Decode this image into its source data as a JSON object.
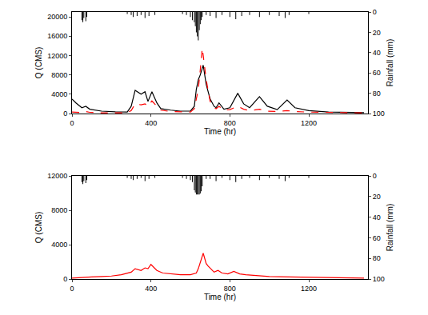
{
  "chart_data": [
    {
      "type": "line",
      "x_label": "Time (hr)",
      "y_label": "Q (CMS)",
      "y2_label": "Rainfall (mm)",
      "xlim": [
        0,
        1500
      ],
      "xticks": [
        0,
        400,
        800,
        1200
      ],
      "ylim": [
        0,
        21000
      ],
      "yticks": [
        0,
        4000,
        8000,
        12000,
        16000,
        20000
      ],
      "y2lim": [
        100,
        0
      ],
      "y2ticks": [
        0,
        20,
        40,
        60,
        80,
        100
      ],
      "grid": false,
      "x": [
        0,
        20,
        50,
        70,
        90,
        150,
        220,
        280,
        300,
        320,
        350,
        370,
        385,
        405,
        430,
        450,
        500,
        550,
        600,
        620,
        630,
        640,
        650,
        660,
        665,
        680,
        700,
        720,
        730,
        745,
        770,
        800,
        840,
        870,
        900,
        950,
        990,
        1040,
        1090,
        1130,
        1200,
        1300,
        1400,
        1480
      ],
      "series": [
        {
          "type": "line",
          "color": "#000000",
          "line_style": "solid",
          "values": [
            3000,
            2200,
            1200,
            1500,
            900,
            500,
            350,
            300,
            1500,
            4800,
            4000,
            4500,
            2500,
            4500,
            2200,
            1000,
            700,
            500,
            500,
            1500,
            5000,
            7000,
            8000,
            9500,
            10000,
            6000,
            3000,
            1500,
            1200,
            2200,
            900,
            1200,
            4200,
            2000,
            1200,
            3500,
            1500,
            800,
            2800,
            1200,
            600,
            300,
            250,
            200
          ]
        },
        {
          "type": "line",
          "color": "#ff0000",
          "line_style": "dash",
          "values": [
            300,
            250,
            200,
            400,
            250,
            150,
            150,
            150,
            600,
            2000,
            1800,
            2000,
            1500,
            2600,
            1500,
            700,
            400,
            300,
            300,
            1000,
            3000,
            5000,
            9000,
            13500,
            12000,
            7000,
            2500,
            1200,
            1000,
            1500,
            700,
            800,
            1500,
            900,
            600,
            900,
            500,
            400,
            600,
            400,
            300,
            200,
            180,
            150
          ]
        },
        {
          "type": "bar",
          "axis": "y2",
          "color": "#000000",
          "x": [
            50,
            55,
            60,
            70,
            75,
            280,
            300,
            310,
            330,
            350,
            370,
            390,
            420,
            560,
            580,
            600,
            610,
            620,
            625,
            630,
            635,
            640,
            645,
            650,
            655,
            660,
            680,
            700,
            730,
            760,
            800,
            830,
            860,
            900,
            950,
            1000,
            1050,
            1080,
            1100,
            1200
          ],
          "values": [
            8,
            10,
            6,
            9,
            5,
            2,
            3,
            5,
            4,
            3,
            6,
            4,
            3,
            2,
            3,
            5,
            8,
            10,
            14,
            20,
            24,
            28,
            18,
            12,
            8,
            5,
            3,
            4,
            6,
            3,
            5,
            7,
            4,
            3,
            5,
            3,
            4,
            6,
            3,
            2
          ]
        }
      ]
    },
    {
      "type": "line",
      "x_label": "Time (hr)",
      "y_label": "Q (CMS)",
      "y2_label": "Rainfall (mm)",
      "xlim": [
        0,
        1500
      ],
      "xticks": [
        0,
        400,
        800,
        1200
      ],
      "ylim": [
        0,
        12000
      ],
      "yticks": [
        0,
        4000,
        8000,
        12000
      ],
      "y2lim": [
        100,
        0
      ],
      "y2ticks": [
        0,
        20,
        40,
        60,
        80,
        100
      ],
      "grid": false,
      "x": [
        0,
        50,
        100,
        150,
        200,
        250,
        300,
        320,
        350,
        370,
        385,
        400,
        430,
        460,
        500,
        550,
        600,
        630,
        640,
        655,
        665,
        680,
        690,
        720,
        740,
        760,
        790,
        820,
        850,
        880,
        950,
        1000,
        1100,
        1200,
        1300,
        1400,
        1480
      ],
      "series": [
        {
          "type": "line",
          "color": "#ff0000",
          "line_style": "solid",
          "values": [
            100,
            200,
            250,
            300,
            350,
            500,
            800,
            1200,
            1000,
            1300,
            1200,
            1700,
            1000,
            700,
            600,
            500,
            500,
            700,
            1200,
            2200,
            3000,
            1800,
            1500,
            800,
            1000,
            700,
            600,
            900,
            600,
            500,
            400,
            300,
            250,
            200,
            150,
            120,
            100
          ]
        },
        {
          "type": "bar",
          "axis": "y2",
          "color": "#000000",
          "x": [
            50,
            55,
            60,
            70,
            75,
            280,
            300,
            310,
            330,
            350,
            370,
            390,
            420,
            560,
            580,
            600,
            610,
            620,
            625,
            630,
            635,
            640,
            645,
            650,
            655,
            660,
            680,
            700,
            730,
            760,
            800,
            830,
            860,
            900,
            950,
            1000,
            1050,
            1080,
            1100,
            1200
          ],
          "values": [
            6,
            8,
            5,
            7,
            4,
            2,
            3,
            4,
            3,
            2,
            5,
            3,
            2,
            2,
            3,
            4,
            6,
            14,
            16,
            18,
            18,
            18,
            18,
            17,
            15,
            10,
            3,
            3,
            5,
            2,
            4,
            6,
            3,
            2,
            4,
            2,
            3,
            5,
            2,
            2
          ]
        }
      ]
    }
  ]
}
